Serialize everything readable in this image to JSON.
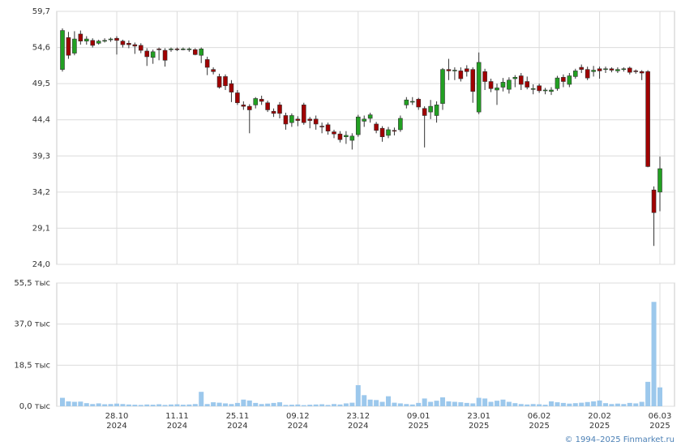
{
  "chart_data": {
    "type": "candlestick",
    "categories": [
      null,
      null,
      null,
      null,
      null,
      null,
      null,
      null,
      null,
      "28.10\n2024",
      null,
      null,
      null,
      null,
      null,
      null,
      null,
      null,
      null,
      "11.11\n2024",
      null,
      null,
      null,
      null,
      null,
      null,
      null,
      null,
      null,
      "25.11\n2024",
      null,
      null,
      null,
      null,
      null,
      null,
      null,
      null,
      null,
      "09.12\n2024",
      null,
      null,
      null,
      null,
      null,
      null,
      null,
      null,
      null,
      "23.12\n2024",
      null,
      null,
      null,
      null,
      null,
      null,
      null,
      null,
      null,
      "09.01\n2025",
      null,
      null,
      null,
      null,
      null,
      null,
      null,
      null,
      null,
      "23.01\n2025",
      null,
      null,
      null,
      null,
      null,
      null,
      null,
      null,
      null,
      "06.02\n2025",
      null,
      null,
      null,
      null,
      null,
      null,
      null,
      null,
      null,
      "20.02\n2025",
      null,
      null,
      null,
      null,
      null,
      null,
      null,
      null,
      null,
      "06.03\n2025"
    ],
    "open": [
      51.5,
      56.0,
      53.8,
      56.5,
      55.5,
      55.6,
      55.2,
      55.6,
      55.7,
      55.9,
      55.5,
      55.2,
      55.0,
      54.9,
      54.1,
      53.2,
      54.4,
      54.2,
      54.3,
      54.4,
      54.4,
      54.4,
      54.3,
      53.5,
      52.9,
      51.5,
      50.5,
      50.5,
      49.5,
      48.2,
      46.5,
      46.3,
      46.5,
      47.3,
      46.8,
      45.6,
      46.5,
      45.0,
      44.0,
      44.5,
      46.5,
      44.5,
      44.5,
      43.5,
      43.7,
      42.7,
      42.4,
      42.0,
      41.5,
      42.3,
      44.2,
      44.6,
      43.8,
      43.2,
      42.2,
      42.9,
      43.0,
      46.5,
      47.0,
      47.3,
      46.0,
      45.5,
      45.0,
      46.7,
      51.5,
      51.3,
      51.3,
      51.6,
      51.5,
      45.5,
      51.2,
      49.8,
      48.6,
      49.0,
      48.7,
      50.2,
      50.6,
      49.8,
      48.7,
      49.2,
      48.5,
      48.4,
      48.8,
      50.4,
      49.4,
      50.5,
      51.8,
      51.5,
      51.2,
      51.6,
      51.5,
      51.6,
      51.3,
      51.5,
      51.7,
      51.3,
      51.2,
      51.2,
      34.5,
      34.2
    ],
    "high": [
      57.3,
      56.8,
      56.9,
      57.0,
      56.2,
      55.9,
      55.7,
      55.9,
      56.0,
      56.2,
      55.7,
      55.6,
      55.3,
      55.2,
      54.5,
      54.3,
      54.6,
      54.5,
      54.6,
      54.6,
      54.6,
      54.6,
      54.5,
      54.6,
      53.3,
      51.8,
      50.9,
      50.8,
      50.0,
      48.6,
      47.0,
      46.6,
      47.6,
      47.8,
      47.1,
      46.0,
      46.9,
      45.4,
      45.3,
      44.9,
      46.8,
      44.8,
      45.0,
      44.0,
      44.0,
      43.0,
      42.8,
      42.8,
      42.5,
      45.1,
      45.0,
      45.4,
      44.1,
      43.5,
      43.4,
      43.3,
      45.0,
      47.6,
      47.6,
      47.5,
      46.3,
      47.2,
      47.0,
      51.7,
      53.0,
      51.8,
      51.8,
      52.1,
      51.8,
      53.9,
      51.6,
      50.2,
      49.5,
      50.3,
      50.4,
      50.7,
      51.0,
      50.5,
      49.4,
      49.5,
      48.9,
      49.0,
      50.6,
      50.8,
      51.0,
      51.6,
      52.2,
      51.9,
      52.0,
      51.9,
      51.9,
      51.8,
      51.8,
      51.8,
      51.9,
      51.5,
      51.4,
      51.4,
      35.0,
      39.2
    ],
    "low": [
      51.2,
      53.0,
      53.5,
      55.0,
      55.0,
      54.6,
      55.0,
      55.3,
      55.4,
      53.6,
      54.6,
      54.5,
      53.7,
      53.8,
      52.0,
      52.3,
      52.8,
      51.9,
      54.0,
      54.1,
      54.2,
      54.0,
      53.5,
      52.4,
      50.7,
      50.8,
      48.8,
      48.6,
      46.9,
      46.5,
      45.8,
      42.5,
      46.0,
      46.5,
      45.5,
      44.8,
      44.6,
      43.0,
      43.4,
      43.5,
      43.7,
      43.2,
      43.0,
      42.5,
      42.3,
      41.8,
      41.2,
      41.0,
      40.2,
      42.0,
      43.4,
      44.0,
      42.5,
      41.3,
      41.8,
      42.2,
      42.7,
      46.0,
      46.5,
      45.8,
      40.5,
      44.5,
      44.0,
      45.8,
      50.0,
      50.0,
      49.8,
      50.5,
      46.8,
      45.2,
      48.6,
      48.3,
      46.5,
      48.4,
      48.1,
      49.0,
      48.6,
      48.7,
      48.0,
      48.2,
      48.0,
      47.9,
      48.5,
      49.0,
      49.0,
      50.2,
      51.0,
      50.0,
      50.5,
      50.2,
      51.0,
      51.1,
      51.0,
      51.2,
      50.8,
      50.9,
      50.0,
      37.7,
      26.6,
      31.5
    ],
    "close": [
      57.0,
      53.5,
      55.8,
      55.5,
      55.8,
      54.9,
      55.5,
      55.6,
      55.8,
      55.6,
      55.0,
      55.0,
      54.8,
      54.2,
      53.3,
      54.0,
      54.3,
      52.8,
      54.4,
      54.3,
      54.4,
      54.4,
      53.6,
      54.4,
      51.8,
      51.2,
      49.0,
      49.2,
      48.3,
      46.8,
      46.3,
      45.8,
      47.4,
      47.0,
      45.8,
      45.3,
      45.3,
      43.8,
      45.0,
      44.3,
      44.0,
      44.3,
      43.8,
      43.4,
      42.8,
      42.4,
      41.6,
      42.2,
      42.1,
      44.8,
      44.5,
      45.1,
      42.9,
      42.0,
      43.0,
      42.8,
      44.6,
      47.2,
      47.0,
      46.2,
      45.0,
      46.3,
      46.5,
      51.5,
      51.3,
      51.4,
      50.2,
      51.2,
      48.4,
      52.5,
      49.8,
      48.8,
      48.9,
      49.7,
      50.0,
      50.4,
      49.4,
      49.0,
      48.8,
      48.5,
      48.6,
      48.6,
      50.3,
      49.8,
      50.6,
      51.3,
      51.5,
      50.3,
      51.4,
      51.3,
      51.6,
      51.4,
      51.5,
      51.6,
      51.1,
      51.2,
      51.0,
      37.8,
      31.3,
      37.5
    ],
    "up_color": "#22a022",
    "down_color": "#a00000",
    "ylim": [
      24.0,
      59.7
    ],
    "yticks": [
      {
        "value": 59.7,
        "label": "59,7"
      },
      {
        "value": 54.6,
        "label": "54,6"
      },
      {
        "value": 49.5,
        "label": "49,5"
      },
      {
        "value": 44.4,
        "label": "44,4"
      },
      {
        "value": 39.3,
        "label": "39,3"
      },
      {
        "value": 34.2,
        "label": "34,2"
      },
      {
        "value": 29.1,
        "label": "29,1"
      },
      {
        "value": 24.0,
        "label": "24,0"
      }
    ],
    "grid": true,
    "volume": {
      "values": [
        3.8,
        2.2,
        2.0,
        2.1,
        1.4,
        1.0,
        1.3,
        0.9,
        1.0,
        1.2,
        1.0,
        0.8,
        0.7,
        0.6,
        0.8,
        0.7,
        0.9,
        0.6,
        0.8,
        0.9,
        0.7,
        0.8,
        1.0,
        6.5,
        1.0,
        1.8,
        1.6,
        1.3,
        1.0,
        1.5,
        3.0,
        2.6,
        1.5,
        1.0,
        1.2,
        1.5,
        1.8,
        0.6,
        0.7,
        0.8,
        0.5,
        0.7,
        0.8,
        0.9,
        0.6,
        1.0,
        0.8,
        1.3,
        1.6,
        9.5,
        5.0,
        3.0,
        2.8,
        2.0,
        4.5,
        1.6,
        1.3,
        1.0,
        0.8,
        1.5,
        3.5,
        2.0,
        2.5,
        4.0,
        2.2,
        2.0,
        1.8,
        1.5,
        1.3,
        3.8,
        3.5,
        2.0,
        2.5,
        3.0,
        2.0,
        1.4,
        1.0,
        0.8,
        1.0,
        0.9,
        0.7,
        2.2,
        1.8,
        1.5,
        1.2,
        1.4,
        1.6,
        1.9,
        2.2,
        2.6,
        1.4,
        1.0,
        1.2,
        1.0,
        1.5,
        1.3,
        2.0,
        11.0,
        47.0,
        8.5
      ],
      "color": "#9cc8ec",
      "ylim": [
        0,
        55.5
      ],
      "yticks": [
        {
          "value": 0,
          "label": "0,0 тыс"
        },
        {
          "value": 18.5,
          "label": "18,5 тыс"
        },
        {
          "value": 37,
          "label": "37,0 тыс"
        },
        {
          "value": 55.5,
          "label": "55,5 тыс"
        }
      ]
    }
  },
  "footer": "© 1994–2025 Finmarket.ru"
}
